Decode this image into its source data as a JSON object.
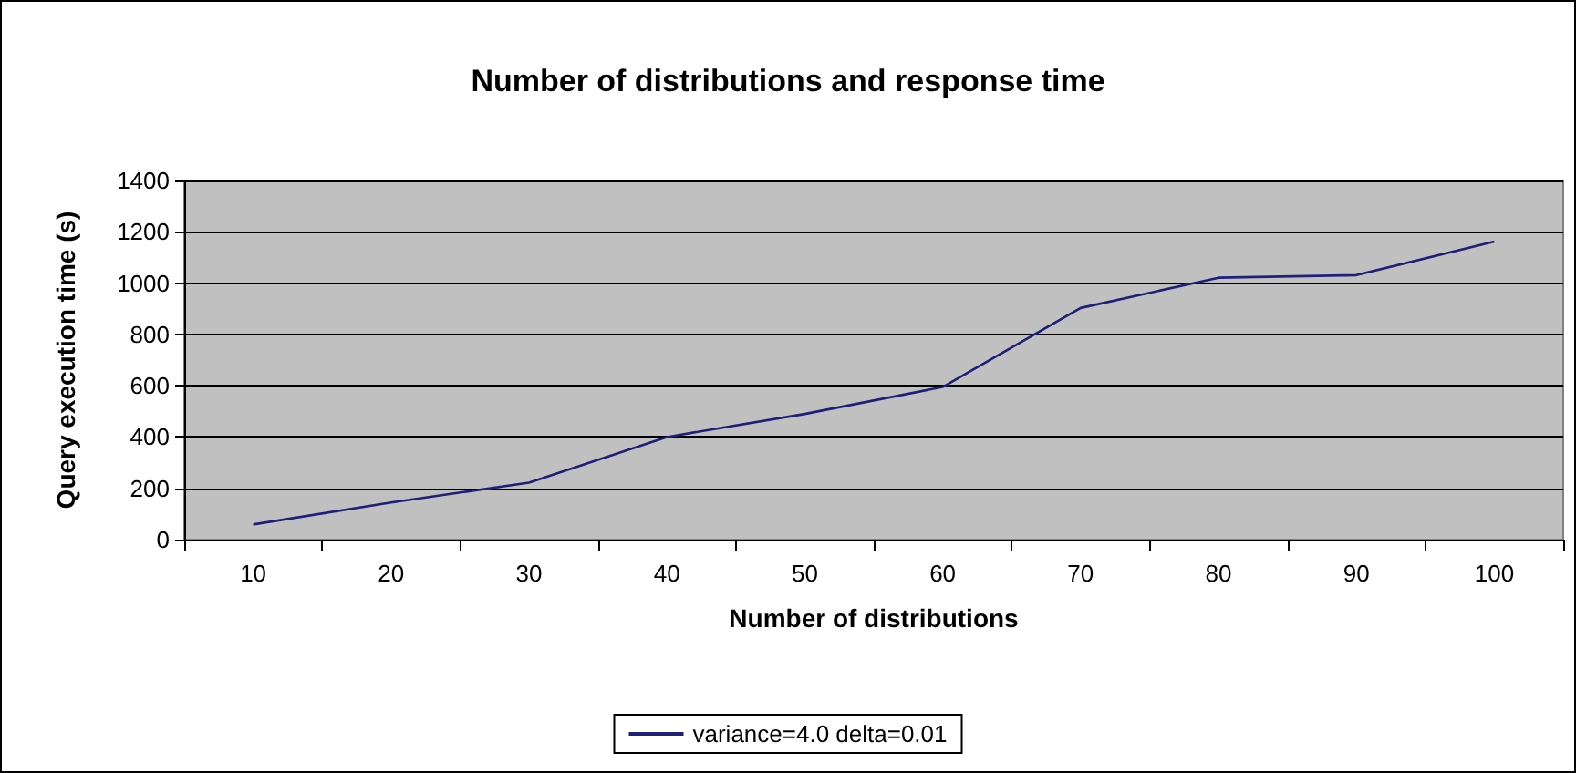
{
  "chart_data": {
    "type": "line",
    "title": "Number of distributions and response time",
    "xlabel": "Number of distributions",
    "ylabel": "Query execution time (s)",
    "categories": [
      "10",
      "20",
      "30",
      "40",
      "50",
      "60",
      "70",
      "80",
      "90",
      "100"
    ],
    "series": [
      {
        "name": "variance=4.0 delta=0.01",
        "color": "#1f1f7a",
        "values": [
          59,
          145,
          222,
          400,
          490,
          595,
          903,
          1021,
          1031,
          1162
        ]
      }
    ],
    "ylim": [
      0,
      1400
    ],
    "yticks": [
      0,
      200,
      400,
      600,
      800,
      1000,
      1200,
      1400
    ],
    "grid": "y",
    "legend": "bottom",
    "marker": "none",
    "line_style": "solid"
  }
}
